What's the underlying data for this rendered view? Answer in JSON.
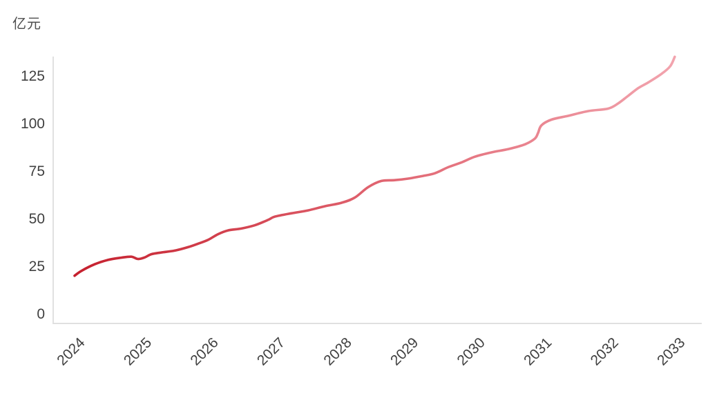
{
  "chart_data": {
    "type": "line",
    "title": "",
    "unit_label": "亿元",
    "xlabel": "",
    "ylabel": "亿元",
    "x_tick_labels": [
      "2024",
      "2025",
      "2026",
      "2027",
      "2028",
      "2029",
      "2030",
      "2031",
      "2032",
      "2033"
    ],
    "y_tick_labels": [
      "0",
      "25",
      "50",
      "75",
      "100",
      "125"
    ],
    "y_ticks": [
      0,
      25,
      50,
      75,
      100,
      125
    ],
    "ylim": [
      0,
      140
    ],
    "xlim": [
      2024,
      2033
    ],
    "grid": false,
    "legend": false,
    "x": [
      2024.0,
      2024.1,
      2024.3,
      2024.5,
      2024.7,
      2024.85,
      2024.95,
      2025.05,
      2025.15,
      2025.3,
      2025.5,
      2025.7,
      2025.85,
      2026.0,
      2026.15,
      2026.3,
      2026.5,
      2026.7,
      2026.9,
      2027.0,
      2027.25,
      2027.5,
      2027.75,
      2028.0,
      2028.2,
      2028.4,
      2028.6,
      2028.8,
      2029.0,
      2029.2,
      2029.4,
      2029.6,
      2029.8,
      2030.0,
      2030.25,
      2030.5,
      2030.75,
      2030.9,
      2030.95,
      2031.0,
      2031.15,
      2031.4,
      2031.7,
      2032.0,
      2032.15,
      2032.3,
      2032.45,
      2032.6,
      2032.8,
      2032.93,
      2033.0
    ],
    "values": [
      20.0,
      22.5,
      26.0,
      28.3,
      29.5,
      30.0,
      28.8,
      29.6,
      31.3,
      32.2,
      33.2,
      35.0,
      36.8,
      38.8,
      41.8,
      43.8,
      44.8,
      46.5,
      49.3,
      51.0,
      52.8,
      54.3,
      56.5,
      58.3,
      61.0,
      66.5,
      69.8,
      70.2,
      71.0,
      72.3,
      73.8,
      77.0,
      79.5,
      82.5,
      84.8,
      86.5,
      89.0,
      92.0,
      95.0,
      99.0,
      102.0,
      104.0,
      106.5,
      107.8,
      110.5,
      114.5,
      118.5,
      121.5,
      126.0,
      130.0,
      135.0
    ],
    "line_gradient_start": "#c5202e",
    "line_gradient_mid": "#e0636f",
    "line_gradient_end": "#f2a4ae",
    "axis_color": "#e0e0e0",
    "tick_label_color": "#404040"
  }
}
